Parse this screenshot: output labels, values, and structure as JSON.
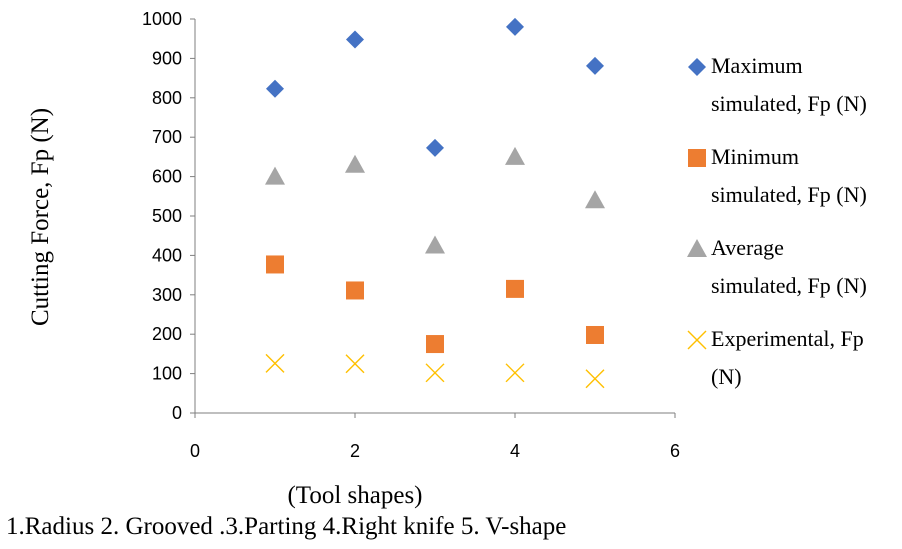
{
  "chart_data": {
    "type": "scatter",
    "title": "",
    "xlabel": "(Tool shapes)",
    "ylabel": "Cutting Force, Fp (N)",
    "caption": "1.Radius 2. Grooved .3.Parting 4.Right knife 5. V-shape",
    "xlim": [
      0,
      6
    ],
    "ylim": [
      0,
      1000
    ],
    "xticks": [
      "0",
      "2",
      "4",
      "6"
    ],
    "yticks": [
      "0",
      "100",
      "200",
      "300",
      "400",
      "500",
      "600",
      "700",
      "800",
      "900",
      "1000"
    ],
    "grid": false,
    "legend_position": "right",
    "series": [
      {
        "name": "Maximum simulated, Fp (N)",
        "legend_lines": [
          "Maximum",
          "simulated, Fp (N)"
        ],
        "marker": "diamond",
        "color": "#4472C4",
        "x": [
          1,
          2,
          3,
          4,
          5
        ],
        "y": [
          823,
          948,
          673,
          980,
          881
        ]
      },
      {
        "name": "Minimum simulated, Fp (N)",
        "legend_lines": [
          "Minimum",
          "simulated, Fp (N)"
        ],
        "marker": "square",
        "color": "#ED7D31",
        "x": [
          1,
          2,
          3,
          4,
          5
        ],
        "y": [
          377,
          311,
          175,
          315,
          198
        ]
      },
      {
        "name": "Average simulated, Fp (N)",
        "legend_lines": [
          "Average",
          "simulated, Fp (N)"
        ],
        "marker": "triangle",
        "color": "#A5A5A5",
        "x": [
          1,
          2,
          3,
          4,
          5
        ],
        "y": [
          600,
          630,
          425,
          650,
          540
        ]
      },
      {
        "name": "Experimental, Fp (N)",
        "legend_lines": [
          "Experimental, Fp",
          "(N)"
        ],
        "marker": "x",
        "color": "#FFC000",
        "x": [
          1,
          2,
          3,
          4,
          5
        ],
        "y": [
          126,
          125,
          102,
          102,
          87
        ]
      }
    ]
  }
}
